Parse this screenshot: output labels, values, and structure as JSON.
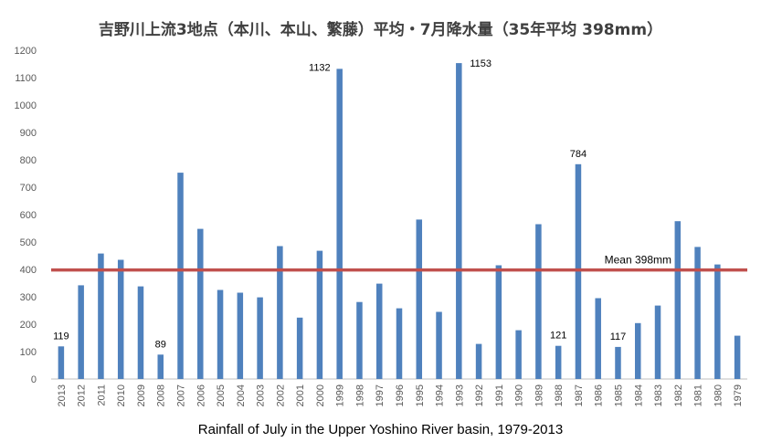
{
  "chart_data": {
    "type": "bar",
    "title": "吉野川上流3地点（本川、本山、繁藤）平均・7月降水量（35年平均 398mm）",
    "caption": "Rainfall of July in the Upper Yoshino River basin, 1979-2013",
    "categories": [
      "2013",
      "2012",
      "2011",
      "2010",
      "2009",
      "2008",
      "2007",
      "2006",
      "2005",
      "2004",
      "2003",
      "2002",
      "2001",
      "2000",
      "1999",
      "1998",
      "1997",
      "1996",
      "1995",
      "1994",
      "1993",
      "1992",
      "1991",
      "1990",
      "1989",
      "1988",
      "1987",
      "1986",
      "1985",
      "1984",
      "1983",
      "1982",
      "1981",
      "1980",
      "1979"
    ],
    "values": [
      119,
      342,
      458,
      435,
      338,
      89,
      753,
      548,
      325,
      315,
      298,
      485,
      224,
      468,
      1132,
      281,
      348,
      258,
      582,
      245,
      1153,
      128,
      415,
      178,
      565,
      121,
      784,
      295,
      117,
      204,
      268,
      576,
      482,
      418,
      158
    ],
    "ylim": [
      0,
      1200
    ],
    "yticks": [
      0,
      100,
      200,
      300,
      400,
      500,
      600,
      700,
      800,
      900,
      1000,
      1100,
      1200
    ],
    "data_labels": [
      {
        "category": "2013",
        "text": "119"
      },
      {
        "category": "2008",
        "text": "89"
      },
      {
        "category": "1999",
        "text": "1132"
      },
      {
        "category": "1993",
        "text": "1153"
      },
      {
        "category": "1988",
        "text": "121"
      },
      {
        "category": "1987",
        "text": "784"
      },
      {
        "category": "1985",
        "text": "117"
      }
    ],
    "mean_line": {
      "value": 398,
      "label": "Mean 398mm",
      "color": "#c0504d"
    },
    "bar_color": "#4f81bd",
    "grid": false
  }
}
